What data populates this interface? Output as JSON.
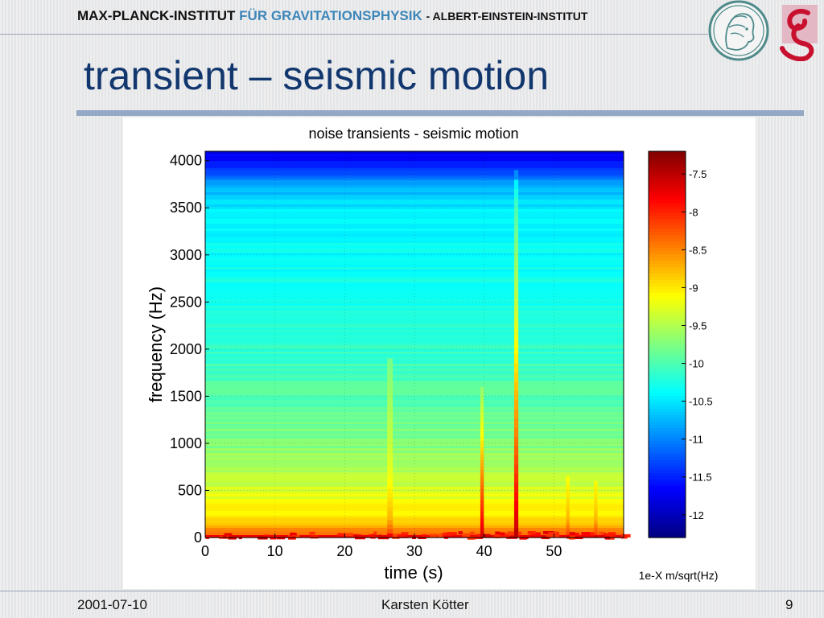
{
  "header": {
    "institute_part1": "MAX-PLANCK-INSTITUT",
    "institute_part2": "FÜR GRAVITATIONSPHYSIK",
    "institute_part3": "- ALBERT-EINSTEIN-INSTITUT"
  },
  "slide_title": "transient – seismic motion",
  "footer": {
    "date": "2001-07-10",
    "author": "Karsten Kötter",
    "page": "9"
  },
  "colors": {
    "title": "#12376e",
    "institute_blue": "#3d86b8",
    "rule": "#92a8c4"
  },
  "chart_data": {
    "type": "heatmap",
    "title": "noise transients - seismic motion",
    "xlabel": "time (s)",
    "ylabel": "frequency (Hz)",
    "xlim": [
      0,
      60
    ],
    "ylim": [
      0,
      4100
    ],
    "xticks": [
      0,
      10,
      20,
      30,
      40,
      50
    ],
    "yticks": [
      0,
      500,
      1000,
      1500,
      2000,
      2500,
      3000,
      3500,
      4000
    ],
    "colorbar": {
      "label": "1e-X m/sqrt(Hz)",
      "range": [
        -12.3,
        -7.2
      ],
      "ticks": [
        -7.5,
        -8,
        -8.5,
        -9,
        -9.5,
        -10,
        -10.5,
        -11,
        -11.5,
        -12
      ]
    },
    "background_level_by_frequency": [
      {
        "freq": 0,
        "value": -7.5
      },
      {
        "freq": 40,
        "value": -8.4
      },
      {
        "freq": 200,
        "value": -9.0
      },
      {
        "freq": 500,
        "value": -9.3
      },
      {
        "freq": 1000,
        "value": -9.75
      },
      {
        "freq": 1500,
        "value": -9.95
      },
      {
        "freq": 2000,
        "value": -10.15
      },
      {
        "freq": 2500,
        "value": -10.3
      },
      {
        "freq": 3000,
        "value": -10.35
      },
      {
        "freq": 3500,
        "value": -10.5
      },
      {
        "freq": 3750,
        "value": -10.8
      },
      {
        "freq": 3850,
        "value": -11.3
      },
      {
        "freq": 4000,
        "value": -11.6
      },
      {
        "freq": 4100,
        "value": -11.8
      }
    ],
    "transients": [
      {
        "time": 39.7,
        "width": 0.5,
        "peak_value": -7.6,
        "max_freq": 1600
      },
      {
        "time": 44.6,
        "width": 0.6,
        "peak_value": -7.5,
        "max_freq": 3900
      },
      {
        "time": 26.5,
        "width": 0.8,
        "peak_value": -9.3,
        "max_freq": 1900
      },
      {
        "time": 52.0,
        "width": 0.5,
        "peak_value": -9.2,
        "max_freq": 650
      },
      {
        "time": 56.0,
        "width": 0.5,
        "peak_value": -9.2,
        "max_freq": 600
      }
    ],
    "grid": true
  }
}
